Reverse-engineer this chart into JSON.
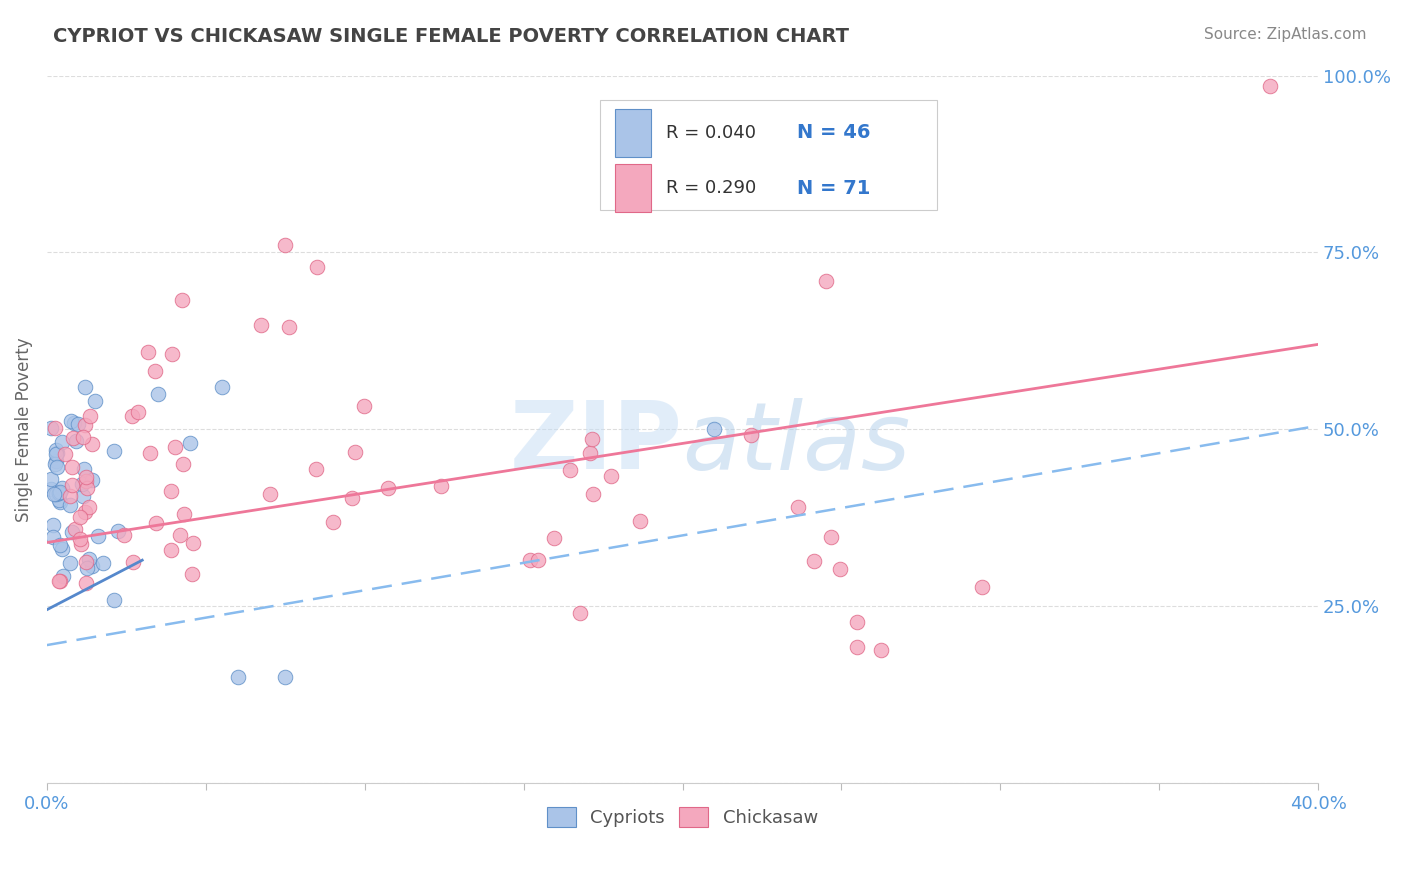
{
  "title": "CYPRIOT VS CHICKASAW SINGLE FEMALE POVERTY CORRELATION CHART",
  "source_text": "Source: ZipAtlas.com",
  "ylabel": "Single Female Poverty",
  "xlim": [
    0.0,
    0.4
  ],
  "ylim": [
    0.0,
    1.0
  ],
  "xtick_positions": [
    0.0,
    0.05,
    0.1,
    0.15,
    0.2,
    0.25,
    0.3,
    0.35,
    0.4
  ],
  "xticklabels": [
    "0.0%",
    "",
    "",
    "",
    "",
    "",
    "",
    "",
    "40.0%"
  ],
  "ytick_positions": [
    0.0,
    0.25,
    0.5,
    0.75,
    1.0
  ],
  "ytick_labels_right": [
    "",
    "25.0%",
    "50.0%",
    "75.0%",
    "100.0%"
  ],
  "watermark": "ZIPatlas",
  "legend_R1": "R = 0.040",
  "legend_N1": "N = 46",
  "legend_R2": "R = 0.290",
  "legend_N2": "N = 71",
  "cypriot_color": "#aac4e8",
  "chickasaw_color": "#f4a8be",
  "cypriot_edge": "#6090c8",
  "chickasaw_edge": "#e06888",
  "trend_cypriot_solid_color": "#5588cc",
  "trend_cypriot_dashed_color": "#88bbee",
  "trend_chickasaw_color": "#ee7799",
  "title_color": "#444444",
  "source_color": "#888888",
  "ylabel_color": "#666666",
  "tick_color": "#5599dd",
  "grid_color": "#dddddd",
  "legend_text_color": "#333333",
  "legend_N_color": "#3377cc"
}
